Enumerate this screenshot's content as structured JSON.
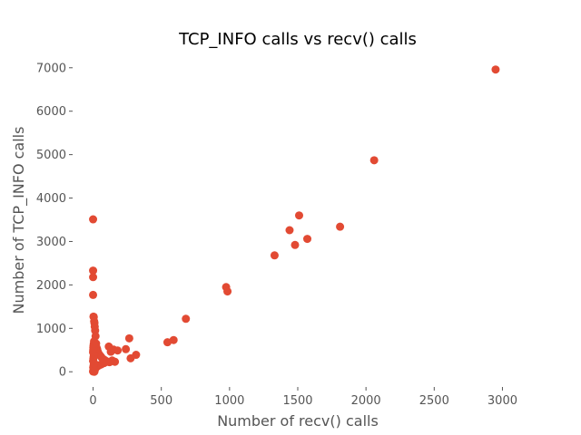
{
  "chart_data": {
    "type": "scatter",
    "title": "TCP_INFO calls vs recv() calls",
    "xlabel": "Number of recv() calls",
    "ylabel": "Number of TCP_INFO calls",
    "xlim": [
      -150,
      3150
    ],
    "ylim": [
      -350,
      7350
    ],
    "xticks": [
      0,
      500,
      1000,
      1500,
      2000,
      2500,
      3000
    ],
    "yticks": [
      0,
      1000,
      2000,
      3000,
      4000,
      5000,
      6000,
      7000
    ],
    "grid": false,
    "series_color": "#E24A33",
    "x": [
      2950,
      2060,
      1510,
      1440,
      1570,
      1480,
      1810,
      1330,
      975,
      985,
      680,
      590,
      545,
      265,
      315,
      275,
      240,
      180,
      150,
      130,
      115,
      100,
      80,
      60,
      45,
      30,
      20,
      10,
      5,
      2,
      1,
      0,
      0,
      0,
      0,
      0,
      3,
      5,
      8,
      10,
      12,
      15,
      18,
      22,
      25,
      30,
      35,
      40,
      50,
      60,
      70,
      85,
      100,
      120,
      140,
      160,
      2,
      3,
      1,
      4,
      6,
      8,
      0,
      2,
      4,
      6,
      0,
      1,
      2,
      3,
      5,
      7,
      9,
      11
    ],
    "y": [
      6960,
      4870,
      3600,
      3260,
      3060,
      2920,
      3340,
      2680,
      1950,
      1850,
      1220,
      730,
      680,
      770,
      390,
      310,
      520,
      490,
      510,
      460,
      580,
      230,
      200,
      170,
      150,
      120,
      90,
      70,
      50,
      30,
      10,
      5,
      3510,
      2330,
      2180,
      1770,
      1270,
      1260,
      1160,
      1120,
      1040,
      950,
      820,
      650,
      560,
      520,
      460,
      420,
      380,
      340,
      300,
      270,
      240,
      220,
      260,
      230,
      30,
      60,
      100,
      140,
      180,
      200,
      250,
      300,
      350,
      400,
      450,
      500,
      550,
      600,
      640,
      700,
      0,
      20
    ]
  }
}
